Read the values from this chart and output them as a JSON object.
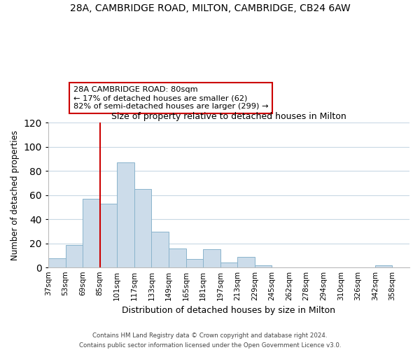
{
  "title": "28A, CAMBRIDGE ROAD, MILTON, CAMBRIDGE, CB24 6AW",
  "subtitle": "Size of property relative to detached houses in Milton",
  "xlabel": "Distribution of detached houses by size in Milton",
  "ylabel": "Number of detached properties",
  "bin_labels": [
    "37sqm",
    "53sqm",
    "69sqm",
    "85sqm",
    "101sqm",
    "117sqm",
    "133sqm",
    "149sqm",
    "165sqm",
    "181sqm",
    "197sqm",
    "213sqm",
    "229sqm",
    "245sqm",
    "262sqm",
    "278sqm",
    "294sqm",
    "310sqm",
    "326sqm",
    "342sqm",
    "358sqm"
  ],
  "bar_heights": [
    8,
    19,
    57,
    53,
    87,
    65,
    30,
    16,
    7,
    15,
    4,
    9,
    2,
    0,
    0,
    0,
    0,
    0,
    0,
    2,
    0
  ],
  "bar_color": "#ccdcea",
  "bar_edge_color": "#8ab4cc",
  "vline_x_bin": 3,
  "vline_color": "#cc0000",
  "annotation_title": "28A CAMBRIDGE ROAD: 80sqm",
  "annotation_line1": "← 17% of detached houses are smaller (62)",
  "annotation_line2": "82% of semi-detached houses are larger (299) →",
  "annotation_box_color": "#ffffff",
  "annotation_box_edge": "#cc0000",
  "ylim": [
    0,
    120
  ],
  "yticks": [
    0,
    20,
    40,
    60,
    80,
    100,
    120
  ],
  "footer1": "Contains HM Land Registry data © Crown copyright and database right 2024.",
  "footer2": "Contains public sector information licensed under the Open Government Licence v3.0.",
  "bg_color": "#ffffff",
  "grid_color": "#c8d8e4"
}
